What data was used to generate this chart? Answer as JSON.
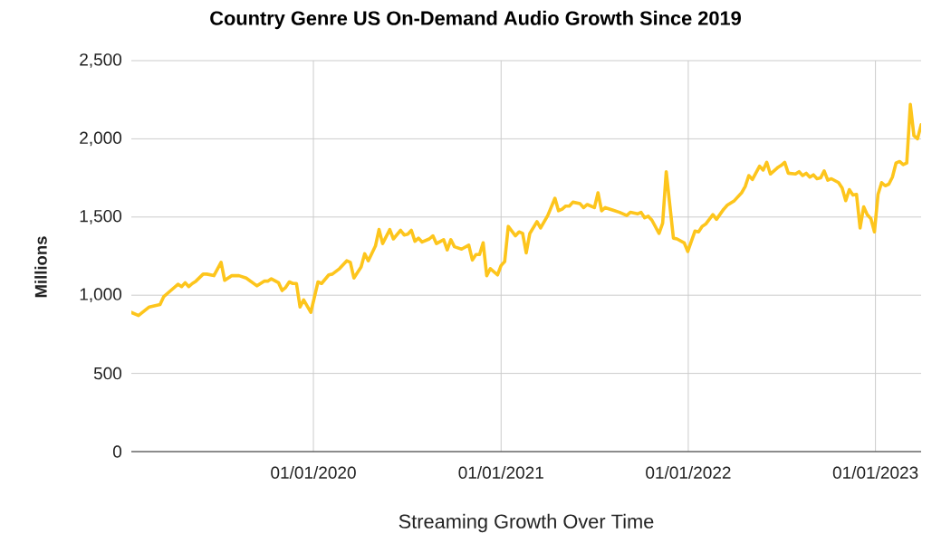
{
  "chart_data": {
    "type": "line",
    "title": "Country Genre US On-Demand Audio Growth Since 2019",
    "xlabel": "Streaming Growth Over Time",
    "ylabel": "Millions",
    "x": [
      "2019-01-11",
      "2019-01-25",
      "2019-02-15",
      "2019-03-08",
      "2019-03-15",
      "2019-03-29",
      "2019-04-12",
      "2019-04-19",
      "2019-04-26",
      "2019-05-03",
      "2019-05-10",
      "2019-05-17",
      "2019-05-31",
      "2019-06-07",
      "2019-06-21",
      "2019-07-05",
      "2019-07-12",
      "2019-07-26",
      "2019-08-09",
      "2019-08-23",
      "2019-09-13",
      "2019-09-27",
      "2019-10-04",
      "2019-10-11",
      "2019-10-25",
      "2019-11-01",
      "2019-11-08",
      "2019-11-15",
      "2019-11-22",
      "2019-11-29",
      "2019-12-06",
      "2019-12-13",
      "2019-12-27",
      "2020-01-10",
      "2020-01-17",
      "2020-01-31",
      "2020-02-07",
      "2020-02-21",
      "2020-03-06",
      "2020-03-13",
      "2020-03-20",
      "2020-04-03",
      "2020-04-10",
      "2020-04-17",
      "2020-05-01",
      "2020-05-08",
      "2020-05-15",
      "2020-05-29",
      "2020-06-05",
      "2020-06-19",
      "2020-06-26",
      "2020-07-03",
      "2020-07-10",
      "2020-07-17",
      "2020-07-24",
      "2020-07-31",
      "2020-08-14",
      "2020-08-21",
      "2020-08-28",
      "2020-09-11",
      "2020-09-18",
      "2020-09-25",
      "2020-10-02",
      "2020-10-16",
      "2020-10-30",
      "2020-11-06",
      "2020-11-13",
      "2020-11-20",
      "2020-11-27",
      "2020-12-04",
      "2020-12-11",
      "2020-12-25",
      "2021-01-01",
      "2021-01-08",
      "2021-01-15",
      "2021-01-29",
      "2021-02-05",
      "2021-02-12",
      "2021-02-19",
      "2021-02-26",
      "2021-03-12",
      "2021-03-19",
      "2021-04-02",
      "2021-04-16",
      "2021-04-23",
      "2021-04-30",
      "2021-05-07",
      "2021-05-14",
      "2021-05-21",
      "2021-06-04",
      "2021-06-11",
      "2021-06-18",
      "2021-07-02",
      "2021-07-09",
      "2021-07-16",
      "2021-07-23",
      "2021-08-06",
      "2021-08-20",
      "2021-09-03",
      "2021-09-10",
      "2021-09-24",
      "2021-10-01",
      "2021-10-08",
      "2021-10-15",
      "2021-10-22",
      "2021-11-05",
      "2021-11-12",
      "2021-11-19",
      "2021-12-03",
      "2021-12-10",
      "2021-12-24",
      "2021-12-31",
      "2022-01-14",
      "2022-01-21",
      "2022-01-28",
      "2022-02-04",
      "2022-02-18",
      "2022-02-25",
      "2022-03-11",
      "2022-03-18",
      "2022-04-01",
      "2022-04-15",
      "2022-04-22",
      "2022-04-29",
      "2022-05-06",
      "2022-05-20",
      "2022-05-27",
      "2022-06-03",
      "2022-06-10",
      "2022-06-24",
      "2022-07-01",
      "2022-07-08",
      "2022-07-15",
      "2022-07-29",
      "2022-08-05",
      "2022-08-12",
      "2022-08-19",
      "2022-08-26",
      "2022-09-02",
      "2022-09-09",
      "2022-09-16",
      "2022-09-23",
      "2022-09-30",
      "2022-10-07",
      "2022-10-21",
      "2022-10-28",
      "2022-11-04",
      "2022-11-11",
      "2022-11-18",
      "2022-11-25",
      "2022-12-02",
      "2022-12-09",
      "2022-12-16",
      "2022-12-23",
      "2022-12-30",
      "2023-01-06",
      "2023-01-13",
      "2023-01-20",
      "2023-01-27",
      "2023-02-03",
      "2023-02-10",
      "2023-02-17",
      "2023-02-24",
      "2023-03-03",
      "2023-03-10",
      "2023-03-17",
      "2023-03-24",
      "2023-03-31"
    ],
    "values": [
      890,
      870,
      925,
      940,
      990,
      1030,
      1070,
      1055,
      1080,
      1055,
      1075,
      1090,
      1135,
      1135,
      1125,
      1210,
      1095,
      1125,
      1125,
      1110,
      1060,
      1090,
      1090,
      1105,
      1080,
      1030,
      1050,
      1085,
      1075,
      1075,
      925,
      970,
      890,
      1085,
      1075,
      1130,
      1135,
      1170,
      1220,
      1210,
      1110,
      1180,
      1265,
      1220,
      1315,
      1420,
      1330,
      1420,
      1360,
      1415,
      1385,
      1390,
      1415,
      1345,
      1365,
      1340,
      1360,
      1380,
      1330,
      1355,
      1290,
      1355,
      1310,
      1295,
      1320,
      1225,
      1260,
      1260,
      1335,
      1125,
      1170,
      1130,
      1190,
      1215,
      1440,
      1380,
      1405,
      1395,
      1270,
      1395,
      1470,
      1430,
      1510,
      1620,
      1540,
      1550,
      1570,
      1570,
      1595,
      1585,
      1560,
      1580,
      1560,
      1655,
      1540,
      1560,
      1545,
      1530,
      1510,
      1530,
      1520,
      1530,
      1495,
      1505,
      1480,
      1395,
      1460,
      1790,
      1365,
      1360,
      1335,
      1280,
      1410,
      1405,
      1440,
      1455,
      1515,
      1485,
      1550,
      1575,
      1605,
      1655,
      1695,
      1765,
      1740,
      1825,
      1800,
      1850,
      1775,
      1815,
      1830,
      1850,
      1780,
      1775,
      1790,
      1765,
      1780,
      1755,
      1770,
      1745,
      1750,
      1795,
      1735,
      1745,
      1720,
      1685,
      1605,
      1675,
      1640,
      1645,
      1430,
      1565,
      1515,
      1490,
      1405,
      1645,
      1720,
      1700,
      1710,
      1755,
      1845,
      1855,
      1835,
      1845,
      2220,
      2020,
      2000,
      2090
    ],
    "color": "#fdc51c",
    "xlim": [
      "2019-01-11",
      "2023-03-31"
    ],
    "xticks": [
      {
        "value": "2020-01-01",
        "label": "01/01/2020"
      },
      {
        "value": "2021-01-01",
        "label": "01/01/2021"
      },
      {
        "value": "2022-01-01",
        "label": "01/01/2022"
      },
      {
        "value": "2023-01-01",
        "label": "01/01/2023"
      }
    ],
    "ylim": [
      0,
      2500
    ],
    "yticks": [
      0,
      500,
      {
        "value": 1000,
        "label": "1,000"
      },
      {
        "value": 1500,
        "label": "1,500"
      },
      {
        "value": 2000,
        "label": "2,000"
      },
      {
        "value": 2500,
        "label": "2,500"
      }
    ],
    "grid": true
  }
}
